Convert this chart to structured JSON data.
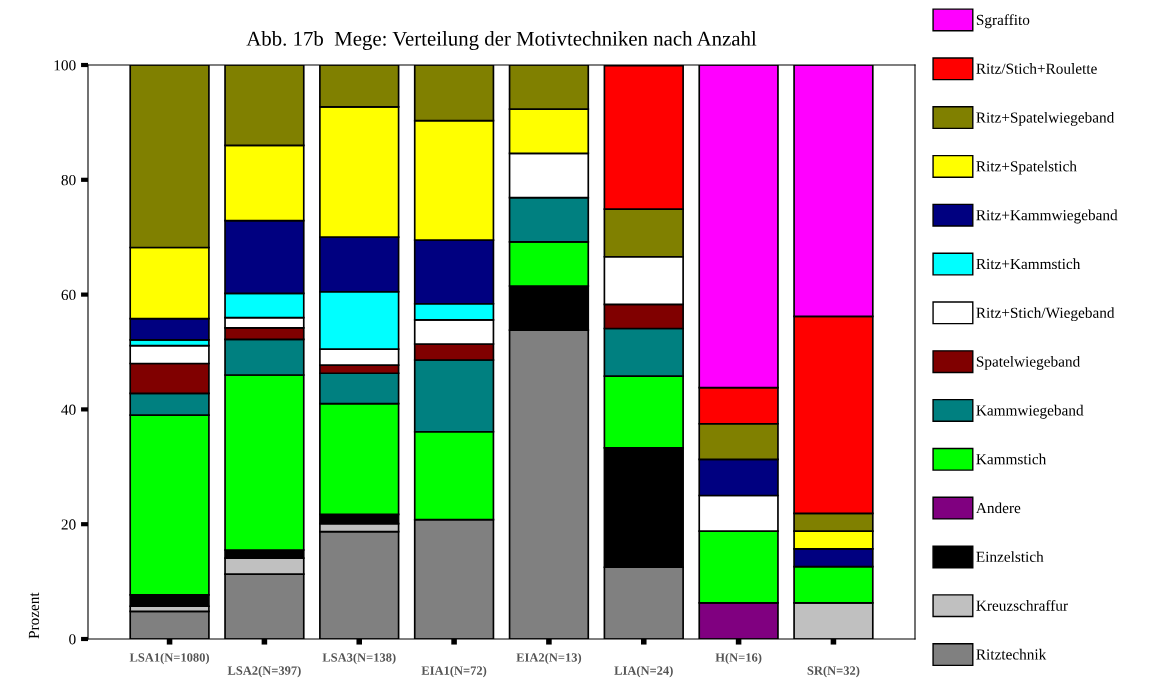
{
  "chart_data": {
    "type": "bar",
    "title": "Abb. 17b  Mege: Verteilung der Motivtechniken nach Anzahl",
    "ylabel": "Prozent",
    "stacked": true,
    "grid": false,
    "legend": "right",
    "categories": [
      "LSA1(N=1080)",
      "LSA2(N=397)",
      "LSA3(N=138)",
      "EIA1(N=72)",
      "EIA2(N=13)",
      "LIA(N=24)",
      "H(N=16)",
      "SR(N=32)"
    ],
    "ylim": [
      0,
      100
    ],
    "yticks": [
      0,
      20,
      40,
      60,
      80,
      100
    ],
    "series": [
      {
        "name": "Ritztechnik",
        "color": "#808080",
        "values": [
          4.8,
          11.3,
          18.7,
          20.8,
          53.8,
          12.5,
          null,
          null
        ]
      },
      {
        "name": "Kreuzschraffur",
        "color": "#c0c0c0",
        "values": [
          0.9,
          2.8,
          1.4,
          null,
          null,
          null,
          null,
          6.3
        ]
      },
      {
        "name": "Einzelstich",
        "color": "#000000",
        "values": [
          2.0,
          1.4,
          1.6,
          null,
          7.7,
          20.8,
          null,
          null
        ]
      },
      {
        "name": "Andere",
        "color": "#800080",
        "values": [
          null,
          null,
          null,
          null,
          null,
          null,
          6.3,
          null
        ]
      },
      {
        "name": "Kammstich",
        "color": "#00ff00",
        "values": [
          31.3,
          30.5,
          19.3,
          15.3,
          7.7,
          12.5,
          12.5,
          6.3
        ]
      },
      {
        "name": "Kammwiegeband",
        "color": "#008080",
        "values": [
          3.8,
          6.2,
          5.3,
          12.5,
          7.7,
          8.3,
          null,
          null
        ]
      },
      {
        "name": "Spatelwiegeband",
        "color": "#800000",
        "values": [
          5.2,
          2.0,
          1.4,
          2.8,
          null,
          4.2,
          null,
          null
        ]
      },
      {
        "name": "Ritz+Stich/Wiegeband",
        "color": "#ffffff",
        "values": [
          3.1,
          1.8,
          2.8,
          4.2,
          7.7,
          8.3,
          6.2,
          null
        ]
      },
      {
        "name": "Ritz+Kammstich",
        "color": "#00ffff",
        "values": [
          1.0,
          4.2,
          10.0,
          2.8,
          null,
          null,
          null,
          null
        ]
      },
      {
        "name": "Ritz+Kammwiegeband",
        "color": "#000080",
        "values": [
          3.7,
          12.7,
          9.5,
          11.1,
          null,
          null,
          6.3,
          3.1
        ]
      },
      {
        "name": "Ritz+Spatelstich",
        "color": "#ffff00",
        "values": [
          12.4,
          13.1,
          22.7,
          20.8,
          7.7,
          null,
          null,
          3.1
        ]
      },
      {
        "name": "Ritz+Spatelwiegeband",
        "color": "#808000",
        "values": [
          31.8,
          14.0,
          7.3,
          9.7,
          7.7,
          8.3,
          6.2,
          3.1
        ]
      },
      {
        "name": "Ritz/Stich+Roulette",
        "color": "#ff0000",
        "values": [
          null,
          null,
          null,
          null,
          null,
          25.0,
          6.3,
          34.3
        ]
      },
      {
        "name": "Sgraffito",
        "color": "#ff00ff",
        "values": [
          null,
          null,
          null,
          null,
          null,
          null,
          56.2,
          43.8
        ]
      }
    ]
  }
}
